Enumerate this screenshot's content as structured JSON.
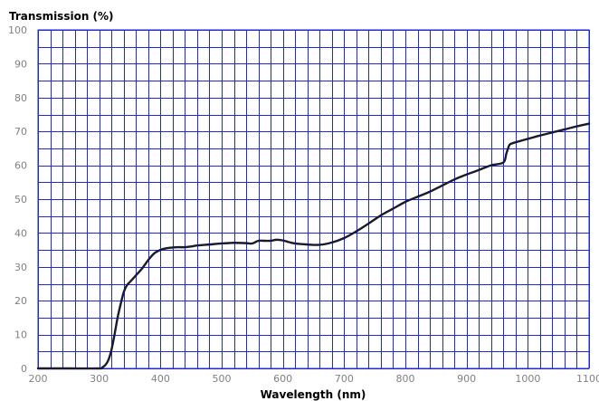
{
  "chart_data": {
    "type": "line",
    "title": "",
    "ylabel": "Transmission (%)",
    "xlabel": "Wavelength (nm)",
    "xlim": [
      200,
      1100
    ],
    "ylim": [
      0,
      100
    ],
    "x_ticks": [
      200,
      300,
      400,
      500,
      600,
      700,
      800,
      900,
      1000,
      1100
    ],
    "y_ticks": [
      0,
      10,
      20,
      30,
      40,
      50,
      60,
      70,
      80,
      90,
      100
    ],
    "x_minor_step": 20,
    "y_minor_step": 5,
    "grid": true,
    "legend": "none",
    "colors": {
      "grid": "#1f2bcc",
      "line": "#1a1a2e",
      "tick_label": "#808080"
    },
    "series": [
      {
        "x": [
          200,
          250,
          300,
          305,
          310,
          315,
          320,
          325,
          330,
          335,
          340,
          345,
          350,
          360,
          370,
          380,
          390,
          400,
          410,
          420,
          430,
          440,
          450,
          460,
          480,
          500,
          520,
          540,
          550,
          560,
          570,
          580,
          590,
          600,
          610,
          620,
          640,
          660,
          680,
          700,
          720,
          740,
          760,
          780,
          800,
          820,
          840,
          860,
          880,
          900,
          920,
          940,
          960,
          965,
          970,
          975,
          980,
          1000,
          1020,
          1040,
          1060,
          1080,
          1100
        ],
        "y": [
          0,
          0,
          0,
          0.3,
          1,
          2.5,
          5.5,
          10,
          15,
          19,
          22.5,
          24.5,
          25.5,
          27.5,
          29.5,
          32,
          34,
          35,
          35.5,
          35.7,
          35.8,
          35.8,
          36,
          36.3,
          36.6,
          36.9,
          37.1,
          37,
          36.9,
          37.7,
          37.7,
          37.7,
          38,
          37.8,
          37.3,
          36.9,
          36.6,
          36.5,
          37.2,
          38.5,
          40.5,
          42.8,
          45.2,
          47.2,
          49.2,
          50.7,
          52.2,
          54,
          55.8,
          57.3,
          58.6,
          60,
          60.8,
          63.5,
          66.0,
          66.5,
          66.8,
          67.8,
          68.8,
          69.7,
          70.6,
          71.5,
          72.3
        ]
      }
    ]
  }
}
